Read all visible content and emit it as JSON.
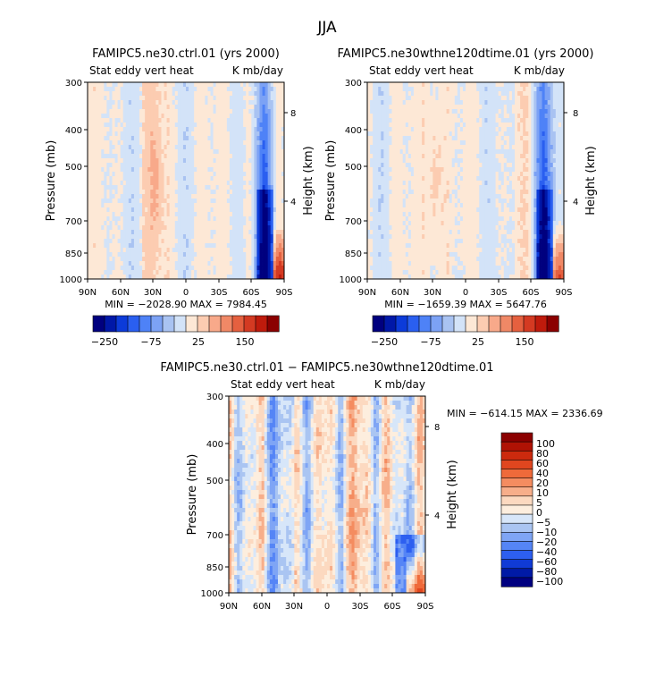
{
  "figure": {
    "title": "JJA"
  },
  "chart_data": [
    {
      "type": "heatmap",
      "title": "FAMIPC5.ne30.ctrl.01 (yrs 2000)",
      "subtitle_left": "Stat eddy vert heat",
      "subtitle_right": "K mb/day",
      "ylabel": "Pressure (mb)",
      "ylabel_right": "Height (km)",
      "x_ticks": [
        "90N",
        "60N",
        "30N",
        "0",
        "30S",
        "60S",
        "90S"
      ],
      "y_ticks": [
        "300",
        "400",
        "500",
        "700",
        "850",
        "1000"
      ],
      "y_ticks_right": [
        "8",
        "4"
      ],
      "stats": "MIN = −2028.90   MAX = 7984.45",
      "colorbar_labels": [
        "−250",
        "−75",
        "25",
        "150"
      ],
      "colorbar_colors": [
        "#00007f",
        "#0018a8",
        "#0c3bd9",
        "#2a5ff0",
        "#4e82f7",
        "#7ca2f5",
        "#a9c3f2",
        "#d3e3f8",
        "#fde8d6",
        "#fcccb1",
        "#f8a98a",
        "#f08866",
        "#e5603f",
        "#d43a22",
        "#bf1b0c",
        "#8b0000"
      ]
    },
    {
      "type": "heatmap",
      "title": "FAMIPC5.ne30wthne120dtime.01 (yrs 2000)",
      "subtitle_left": "Stat eddy vert heat",
      "subtitle_right": "K mb/day",
      "ylabel": "Pressure (mb)",
      "ylabel_right": "Height (km)",
      "x_ticks": [
        "90N",
        "60N",
        "30N",
        "0",
        "30S",
        "60S",
        "90S"
      ],
      "y_ticks": [
        "300",
        "400",
        "500",
        "700",
        "850",
        "1000"
      ],
      "y_ticks_right": [
        "8",
        "4"
      ],
      "stats": "MIN = −1659.39   MAX = 5647.76",
      "colorbar_labels": [
        "−250",
        "−75",
        "25",
        "150"
      ],
      "colorbar_colors": [
        "#00007f",
        "#0018a8",
        "#0c3bd9",
        "#2a5ff0",
        "#4e82f7",
        "#7ca2f5",
        "#a9c3f2",
        "#d3e3f8",
        "#fde8d6",
        "#fcccb1",
        "#f8a98a",
        "#f08866",
        "#e5603f",
        "#d43a22",
        "#bf1b0c",
        "#8b0000"
      ]
    },
    {
      "type": "heatmap",
      "title": "FAMIPC5.ne30.ctrl.01 − FAMIPC5.ne30wthne120dtime.01",
      "subtitle_left": "Stat eddy vert heat",
      "subtitle_right": "K mb/day",
      "ylabel": "Pressure (mb)",
      "ylabel_right": "Height (km)",
      "x_ticks": [
        "90N",
        "60N",
        "30N",
        "0",
        "30S",
        "60S",
        "90S"
      ],
      "y_ticks": [
        "300",
        "400",
        "500",
        "700",
        "850",
        "1000"
      ],
      "y_ticks_right": [
        "8",
        "4"
      ],
      "stats": "MIN = −614.15   MAX = 2336.69",
      "colorbar_labels": [
        "100",
        "80",
        "60",
        "40",
        "20",
        "10",
        "5",
        "0",
        "−5",
        "−10",
        "−20",
        "−40",
        "−60",
        "−80",
        "−100"
      ],
      "colorbar_colors": [
        "#8b0000",
        "#b01204",
        "#cc2a0e",
        "#e0461f",
        "#ef6a3a",
        "#f48c60",
        "#f7ae8a",
        "#fcd9c0",
        "#fdeede",
        "#d7e6f9",
        "#aac5f2",
        "#7fa5f5",
        "#5585f6",
        "#2d5ff0",
        "#103bd6",
        "#001aa6",
        "#000080"
      ]
    }
  ]
}
